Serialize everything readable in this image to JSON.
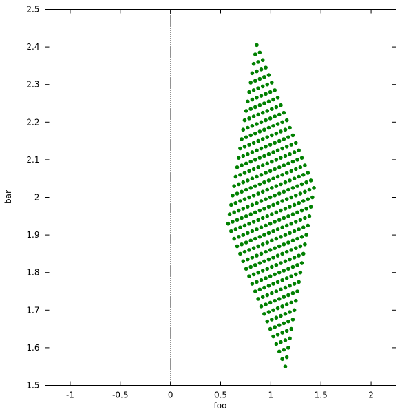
{
  "chart_data": {
    "type": "scatter",
    "title": "",
    "xlabel": "foo",
    "ylabel": "bar",
    "xlim": [
      -1.25,
      2.25
    ],
    "ylim": [
      1.5,
      2.5
    ],
    "xticks": [
      -1,
      -0.5,
      0,
      0.5,
      1,
      1.5,
      2
    ],
    "xtick_labels": [
      "-1",
      "-0.5",
      "0",
      "0.5",
      "1",
      "1.5",
      "2"
    ],
    "yticks": [
      1.5,
      1.6,
      1.7,
      1.8,
      1.9,
      2.0,
      2.1,
      2.2,
      2.3,
      2.4,
      2.5
    ],
    "ytick_labels": [
      "1.5",
      "1.6",
      "1.7",
      "1.8",
      "1.9",
      "2",
      "2.1",
      "2.2",
      "2.3",
      "2.4",
      "2.5"
    ],
    "grid": false,
    "zero_axis": "x=0 dotted vertical line",
    "marker_color": "#008000",
    "series": [
      {
        "x": [
          [
            0.86,
            0.89,
            0.92,
            0.95,
            0.98,
            1.01,
            1.04,
            1.07,
            1.1,
            1.13,
            1.16,
            1.19,
            1.22,
            1.25,
            1.28,
            1.31,
            1.34,
            1.37,
            1.4,
            1.43
          ],
          [
            0.845,
            0.875,
            0.905,
            0.935,
            0.965,
            0.995,
            1.025,
            1.055,
            1.085,
            1.115,
            1.145,
            1.175,
            1.205,
            1.235,
            1.265,
            1.295,
            1.325,
            1.355,
            1.385,
            1.415
          ],
          [
            0.83,
            0.86,
            0.89,
            0.92,
            0.95,
            0.98,
            1.01,
            1.04,
            1.07,
            1.1,
            1.13,
            1.16,
            1.19,
            1.22,
            1.25,
            1.28,
            1.31,
            1.34,
            1.37,
            1.4
          ],
          [
            0.815,
            0.845,
            0.875,
            0.905,
            0.935,
            0.965,
            0.995,
            1.025,
            1.055,
            1.085,
            1.115,
            1.145,
            1.175,
            1.205,
            1.235,
            1.265,
            1.295,
            1.325,
            1.355,
            1.385
          ],
          [
            0.8,
            0.83,
            0.86,
            0.89,
            0.92,
            0.95,
            0.98,
            1.01,
            1.04,
            1.07,
            1.1,
            1.13,
            1.16,
            1.19,
            1.22,
            1.25,
            1.28,
            1.31,
            1.34,
            1.37
          ],
          [
            0.785,
            0.815,
            0.845,
            0.875,
            0.905,
            0.935,
            0.965,
            0.995,
            1.025,
            1.055,
            1.085,
            1.115,
            1.145,
            1.175,
            1.205,
            1.235,
            1.265,
            1.295,
            1.325,
            1.355
          ],
          [
            0.77,
            0.8,
            0.83,
            0.86,
            0.89,
            0.92,
            0.95,
            0.98,
            1.01,
            1.04,
            1.07,
            1.1,
            1.13,
            1.16,
            1.19,
            1.22,
            1.25,
            1.28,
            1.31,
            1.34
          ],
          [
            0.755,
            0.785,
            0.815,
            0.845,
            0.875,
            0.905,
            0.935,
            0.965,
            0.995,
            1.025,
            1.055,
            1.085,
            1.115,
            1.145,
            1.175,
            1.205,
            1.235,
            1.265,
            1.295,
            1.325
          ],
          [
            0.74,
            0.77,
            0.8,
            0.83,
            0.86,
            0.89,
            0.92,
            0.95,
            0.98,
            1.01,
            1.04,
            1.07,
            1.1,
            1.13,
            1.16,
            1.19,
            1.22,
            1.25,
            1.28,
            1.31
          ],
          [
            0.725,
            0.755,
            0.785,
            0.815,
            0.845,
            0.875,
            0.905,
            0.935,
            0.965,
            0.995,
            1.025,
            1.055,
            1.085,
            1.115,
            1.145,
            1.175,
            1.205,
            1.235,
            1.265,
            1.295
          ],
          [
            0.71,
            0.74,
            0.77,
            0.8,
            0.83,
            0.86,
            0.89,
            0.92,
            0.95,
            0.98,
            1.01,
            1.04,
            1.07,
            1.1,
            1.13,
            1.16,
            1.19,
            1.22,
            1.25,
            1.28
          ],
          [
            0.695,
            0.725,
            0.755,
            0.785,
            0.815,
            0.845,
            0.875,
            0.905,
            0.935,
            0.965,
            0.995,
            1.025,
            1.055,
            1.085,
            1.115,
            1.145,
            1.175,
            1.205,
            1.235,
            1.265
          ],
          [
            0.68,
            0.71,
            0.74,
            0.77,
            0.8,
            0.83,
            0.86,
            0.89,
            0.92,
            0.95,
            0.98,
            1.01,
            1.04,
            1.07,
            1.1,
            1.13,
            1.16,
            1.19,
            1.22,
            1.25
          ],
          [
            0.665,
            0.695,
            0.725,
            0.755,
            0.785,
            0.815,
            0.845,
            0.875,
            0.905,
            0.935,
            0.965,
            0.995,
            1.025,
            1.055,
            1.085,
            1.115,
            1.145,
            1.175,
            1.205,
            1.235
          ],
          [
            0.65,
            0.68,
            0.71,
            0.74,
            0.77,
            0.8,
            0.83,
            0.86,
            0.89,
            0.92,
            0.95,
            0.98,
            1.01,
            1.04,
            1.07,
            1.1,
            1.13,
            1.16,
            1.19,
            1.22
          ],
          [
            0.635,
            0.665,
            0.695,
            0.725,
            0.755,
            0.785,
            0.815,
            0.845,
            0.875,
            0.905,
            0.935,
            0.965,
            0.995,
            1.025,
            1.055,
            1.085,
            1.115,
            1.145,
            1.175,
            1.205
          ],
          [
            0.62,
            0.65,
            0.68,
            0.71,
            0.74,
            0.77,
            0.8,
            0.83,
            0.86,
            0.89,
            0.92,
            0.95,
            0.98,
            1.01,
            1.04,
            1.07,
            1.1,
            1.13,
            1.16,
            1.19
          ],
          [
            0.605,
            0.635,
            0.665,
            0.695,
            0.725,
            0.755,
            0.785,
            0.815,
            0.845,
            0.875,
            0.905,
            0.935,
            0.965,
            0.995,
            1.025,
            1.055,
            1.085,
            1.115,
            1.145,
            1.175
          ],
          [
            0.59,
            0.62,
            0.65,
            0.68,
            0.71,
            0.74,
            0.77,
            0.8,
            0.83,
            0.86,
            0.89,
            0.92,
            0.95,
            0.98,
            1.01,
            1.04,
            1.07,
            1.1,
            1.13,
            1.16
          ],
          [
            0.575,
            0.605,
            0.635,
            0.665,
            0.695,
            0.725,
            0.755,
            0.785,
            0.815,
            0.845,
            0.875,
            0.905,
            0.935,
            0.965,
            0.995,
            1.025,
            1.055,
            1.085,
            1.115,
            1.145
          ]
        ],
        "y": [
          [
            2.405,
            2.385,
            2.365,
            2.345,
            2.325,
            2.305,
            2.285,
            2.265,
            2.245,
            2.225,
            2.205,
            2.185,
            2.165,
            2.145,
            2.125,
            2.105,
            2.085,
            2.065,
            2.045,
            2.025
          ],
          [
            2.38,
            2.36,
            2.34,
            2.32,
            2.3,
            2.28,
            2.26,
            2.24,
            2.22,
            2.2,
            2.18,
            2.16,
            2.14,
            2.12,
            2.1,
            2.08,
            2.06,
            2.04,
            2.02,
            2.0
          ],
          [
            2.355,
            2.335,
            2.315,
            2.295,
            2.275,
            2.255,
            2.235,
            2.215,
            2.195,
            2.175,
            2.155,
            2.135,
            2.115,
            2.095,
            2.075,
            2.055,
            2.035,
            2.015,
            1.995,
            1.975
          ],
          [
            2.33,
            2.31,
            2.29,
            2.27,
            2.25,
            2.23,
            2.21,
            2.19,
            2.17,
            2.15,
            2.13,
            2.11,
            2.09,
            2.07,
            2.05,
            2.03,
            2.01,
            1.99,
            1.97,
            1.95
          ],
          [
            2.305,
            2.285,
            2.265,
            2.245,
            2.225,
            2.205,
            2.185,
            2.165,
            2.145,
            2.125,
            2.105,
            2.085,
            2.065,
            2.045,
            2.025,
            2.005,
            1.985,
            1.965,
            1.945,
            1.925
          ],
          [
            2.28,
            2.26,
            2.24,
            2.22,
            2.2,
            2.18,
            2.16,
            2.14,
            2.12,
            2.1,
            2.08,
            2.06,
            2.04,
            2.02,
            2.0,
            1.98,
            1.96,
            1.94,
            1.92,
            1.9
          ],
          [
            2.255,
            2.235,
            2.215,
            2.195,
            2.175,
            2.155,
            2.135,
            2.115,
            2.095,
            2.075,
            2.055,
            2.035,
            2.015,
            1.995,
            1.975,
            1.955,
            1.935,
            1.915,
            1.895,
            1.875
          ],
          [
            2.23,
            2.21,
            2.19,
            2.17,
            2.15,
            2.13,
            2.11,
            2.09,
            2.07,
            2.05,
            2.03,
            2.01,
            1.99,
            1.97,
            1.95,
            1.93,
            1.91,
            1.89,
            1.87,
            1.85
          ],
          [
            2.205,
            2.185,
            2.165,
            2.145,
            2.125,
            2.105,
            2.085,
            2.065,
            2.045,
            2.025,
            2.005,
            1.985,
            1.965,
            1.945,
            1.925,
            1.905,
            1.885,
            1.865,
            1.845,
            1.825
          ],
          [
            2.18,
            2.16,
            2.14,
            2.12,
            2.1,
            2.08,
            2.06,
            2.04,
            2.02,
            2.0,
            1.98,
            1.96,
            1.94,
            1.92,
            1.9,
            1.88,
            1.86,
            1.84,
            1.82,
            1.8
          ],
          [
            2.155,
            2.135,
            2.115,
            2.095,
            2.075,
            2.055,
            2.035,
            2.015,
            1.995,
            1.975,
            1.955,
            1.935,
            1.915,
            1.895,
            1.875,
            1.855,
            1.835,
            1.815,
            1.795,
            1.775
          ],
          [
            2.13,
            2.11,
            2.09,
            2.07,
            2.05,
            2.03,
            2.01,
            1.99,
            1.97,
            1.95,
            1.93,
            1.91,
            1.89,
            1.87,
            1.85,
            1.83,
            1.81,
            1.79,
            1.77,
            1.75
          ],
          [
            2.105,
            2.085,
            2.065,
            2.045,
            2.025,
            2.005,
            1.985,
            1.965,
            1.945,
            1.925,
            1.905,
            1.885,
            1.865,
            1.845,
            1.825,
            1.805,
            1.785,
            1.765,
            1.745,
            1.725
          ],
          [
            2.08,
            2.06,
            2.04,
            2.02,
            2.0,
            1.98,
            1.96,
            1.94,
            1.92,
            1.9,
            1.88,
            1.86,
            1.84,
            1.82,
            1.8,
            1.78,
            1.76,
            1.74,
            1.72,
            1.7
          ],
          [
            2.055,
            2.035,
            2.015,
            1.995,
            1.975,
            1.955,
            1.935,
            1.915,
            1.895,
            1.875,
            1.855,
            1.835,
            1.815,
            1.795,
            1.775,
            1.755,
            1.735,
            1.715,
            1.695,
            1.675
          ],
          [
            2.03,
            2.01,
            1.99,
            1.97,
            1.95,
            1.93,
            1.91,
            1.89,
            1.87,
            1.85,
            1.83,
            1.81,
            1.79,
            1.77,
            1.75,
            1.73,
            1.71,
            1.69,
            1.67,
            1.65
          ],
          [
            2.005,
            1.985,
            1.965,
            1.945,
            1.925,
            1.905,
            1.885,
            1.865,
            1.845,
            1.825,
            1.805,
            1.785,
            1.765,
            1.745,
            1.725,
            1.705,
            1.685,
            1.665,
            1.645,
            1.625
          ],
          [
            1.98,
            1.96,
            1.94,
            1.92,
            1.9,
            1.88,
            1.86,
            1.84,
            1.82,
            1.8,
            1.78,
            1.76,
            1.74,
            1.72,
            1.7,
            1.68,
            1.66,
            1.64,
            1.62,
            1.6
          ],
          [
            1.955,
            1.935,
            1.915,
            1.895,
            1.875,
            1.855,
            1.835,
            1.815,
            1.795,
            1.775,
            1.755,
            1.735,
            1.715,
            1.695,
            1.675,
            1.655,
            1.635,
            1.615,
            1.595,
            1.575
          ],
          [
            1.93,
            1.91,
            1.89,
            1.87,
            1.85,
            1.83,
            1.81,
            1.79,
            1.77,
            1.75,
            1.73,
            1.71,
            1.69,
            1.67,
            1.65,
            1.63,
            1.61,
            1.59,
            1.57,
            1.55
          ]
        ]
      }
    ]
  }
}
